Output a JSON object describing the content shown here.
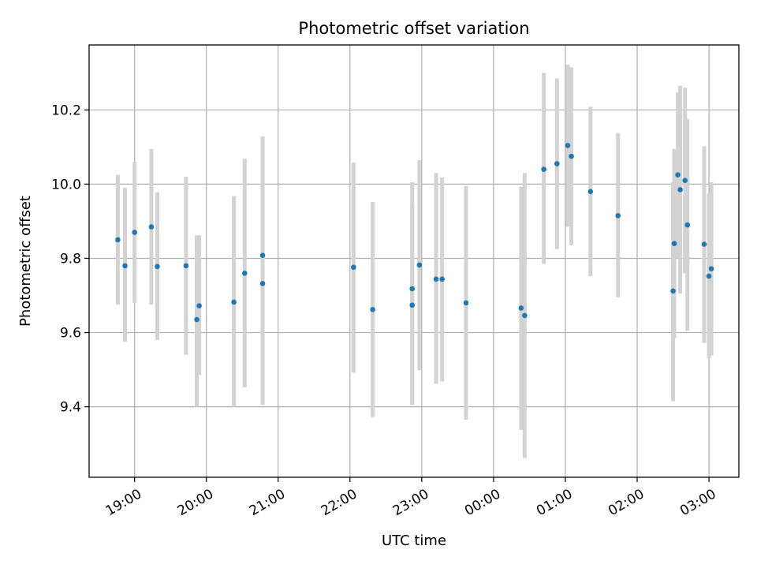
{
  "chart_data": {
    "type": "scatter",
    "title": "Photometric offset variation",
    "xlabel": "UTC time",
    "ylabel": "Photometric offset",
    "x_ticks": [
      "19:00",
      "20:00",
      "21:00",
      "22:00",
      "23:00",
      "00:00",
      "01:00",
      "02:00",
      "03:00"
    ],
    "x_axis_range": [
      "18:22",
      "03:25"
    ],
    "y_ticks": [
      "9.4",
      "9.6",
      "9.8",
      "10.0",
      "10.2"
    ],
    "ylim": [
      9.21,
      10.375
    ],
    "grid": true,
    "colors": {
      "points": "#1f77b4",
      "error_bars": "#d3d3d3"
    },
    "points": [
      {
        "x": "18:46",
        "y": 9.85,
        "yerr_low": 9.675,
        "yerr_high": 10.025
      },
      {
        "x": "18:52",
        "y": 9.78,
        "yerr_low": 9.575,
        "yerr_high": 9.99
      },
      {
        "x": "19:00",
        "y": 9.87,
        "yerr_low": 9.68,
        "yerr_high": 10.06
      },
      {
        "x": "19:14",
        "y": 9.885,
        "yerr_low": 9.675,
        "yerr_high": 10.095
      },
      {
        "x": "19:19",
        "y": 9.778,
        "yerr_low": 9.58,
        "yerr_high": 9.978
      },
      {
        "x": "19:43",
        "y": 9.78,
        "yerr_low": 9.54,
        "yerr_high": 10.02
      },
      {
        "x": "19:52",
        "y": 9.635,
        "yerr_low": 9.4,
        "yerr_high": 9.862
      },
      {
        "x": "19:54",
        "y": 9.672,
        "yerr_low": 9.485,
        "yerr_high": 9.862
      },
      {
        "x": "20:23",
        "y": 9.682,
        "yerr_low": 9.398,
        "yerr_high": 9.968
      },
      {
        "x": "20:32",
        "y": 9.76,
        "yerr_low": 9.452,
        "yerr_high": 10.068
      },
      {
        "x": "20:47",
        "y": 9.732,
        "yerr_low": 9.405,
        "yerr_high": 10.128
      },
      {
        "x": "20:47",
        "y": 9.808,
        "yerr_low": 9.405,
        "yerr_high": 10.128
      },
      {
        "x": "22:03",
        "y": 9.776,
        "yerr_low": 9.492,
        "yerr_high": 10.058
      },
      {
        "x": "22:19",
        "y": 9.662,
        "yerr_low": 9.372,
        "yerr_high": 9.952
      },
      {
        "x": "22:52",
        "y": 9.718,
        "yerr_low": 9.405,
        "yerr_high": 10.005
      },
      {
        "x": "22:52",
        "y": 9.674,
        "yerr_low": 9.405,
        "yerr_high": 9.945
      },
      {
        "x": "22:58",
        "y": 9.782,
        "yerr_low": 9.498,
        "yerr_high": 10.065
      },
      {
        "x": "23:12",
        "y": 9.744,
        "yerr_low": 9.462,
        "yerr_high": 10.03
      },
      {
        "x": "23:17",
        "y": 9.744,
        "yerr_low": 9.468,
        "yerr_high": 10.018
      },
      {
        "x": "23:37",
        "y": 9.68,
        "yerr_low": 9.365,
        "yerr_high": 9.995
      },
      {
        "x": "00:23",
        "y": 9.666,
        "yerr_low": 9.338,
        "yerr_high": 9.993
      },
      {
        "x": "00:26",
        "y": 9.646,
        "yerr_low": 9.262,
        "yerr_high": 10.03
      },
      {
        "x": "00:42",
        "y": 10.04,
        "yerr_low": 9.785,
        "yerr_high": 10.3
      },
      {
        "x": "00:53",
        "y": 10.055,
        "yerr_low": 9.825,
        "yerr_high": 10.285
      },
      {
        "x": "01:02",
        "y": 10.104,
        "yerr_low": 9.885,
        "yerr_high": 10.322
      },
      {
        "x": "01:05",
        "y": 10.075,
        "yerr_low": 9.835,
        "yerr_high": 10.315
      },
      {
        "x": "01:21",
        "y": 9.98,
        "yerr_low": 9.752,
        "yerr_high": 10.208
      },
      {
        "x": "01:44",
        "y": 9.915,
        "yerr_low": 9.695,
        "yerr_high": 10.138
      },
      {
        "x": "02:30",
        "y": 9.712,
        "yerr_low": 9.415,
        "yerr_high": 10.005
      },
      {
        "x": "02:31",
        "y": 9.84,
        "yerr_low": 9.585,
        "yerr_high": 10.095
      },
      {
        "x": "02:34",
        "y": 10.025,
        "yerr_low": 9.8,
        "yerr_high": 10.248
      },
      {
        "x": "02:36",
        "y": 9.985,
        "yerr_low": 9.705,
        "yerr_high": 10.265
      },
      {
        "x": "02:40",
        "y": 10.01,
        "yerr_low": 9.76,
        "yerr_high": 10.26
      },
      {
        "x": "02:42",
        "y": 9.89,
        "yerr_low": 9.605,
        "yerr_high": 10.175
      },
      {
        "x": "02:56",
        "y": 9.838,
        "yerr_low": 9.572,
        "yerr_high": 10.102
      },
      {
        "x": "03:00",
        "y": 9.752,
        "yerr_low": 9.53,
        "yerr_high": 9.975
      },
      {
        "x": "03:02",
        "y": 9.772,
        "yerr_low": 9.538,
        "yerr_high": 10.005
      }
    ]
  }
}
